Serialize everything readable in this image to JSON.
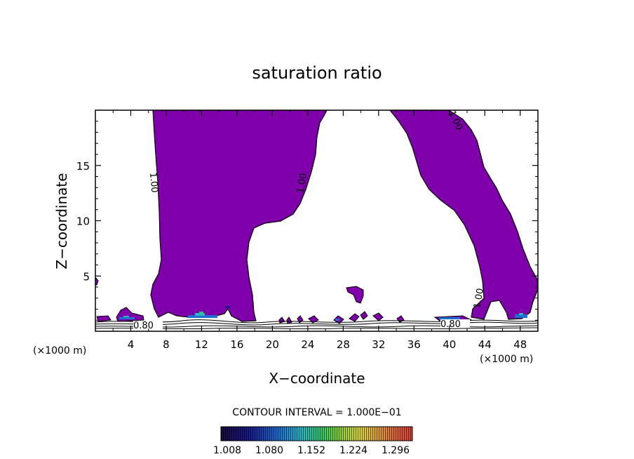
{
  "chart_data": {
    "type": "contour",
    "title": "saturation ratio",
    "xlabel": "X−coordinate",
    "ylabel": "Z−coordinate",
    "x_unit_left": "(×1000 m)",
    "x_unit_right": "(×1000 m)",
    "xlim": [
      0,
      50
    ],
    "ylim": [
      0,
      20
    ],
    "x_ticks": [
      4,
      8,
      12,
      16,
      20,
      24,
      28,
      32,
      36,
      40,
      44,
      48
    ],
    "y_ticks": [
      5,
      10,
      15
    ],
    "contour_interval_text": "CONTOUR INTERVAL = 1.000E−01",
    "contour_labels": [
      "1.00",
      "1.00",
      "1.00",
      "1.00",
      "0.80",
      "0.80"
    ],
    "fill_color": "#7f00aa",
    "colorbar": {
      "tick_labels": [
        "1.008",
        "1.080",
        "1.152",
        "1.224",
        "1.296"
      ],
      "colors": [
        "#1a0a3a",
        "#1a1a8c",
        "#1e6fd0",
        "#26b8c8",
        "#2ec86e",
        "#8cd23c",
        "#d8d83c",
        "#e0a040",
        "#e06a3a",
        "#d84040"
      ]
    }
  }
}
